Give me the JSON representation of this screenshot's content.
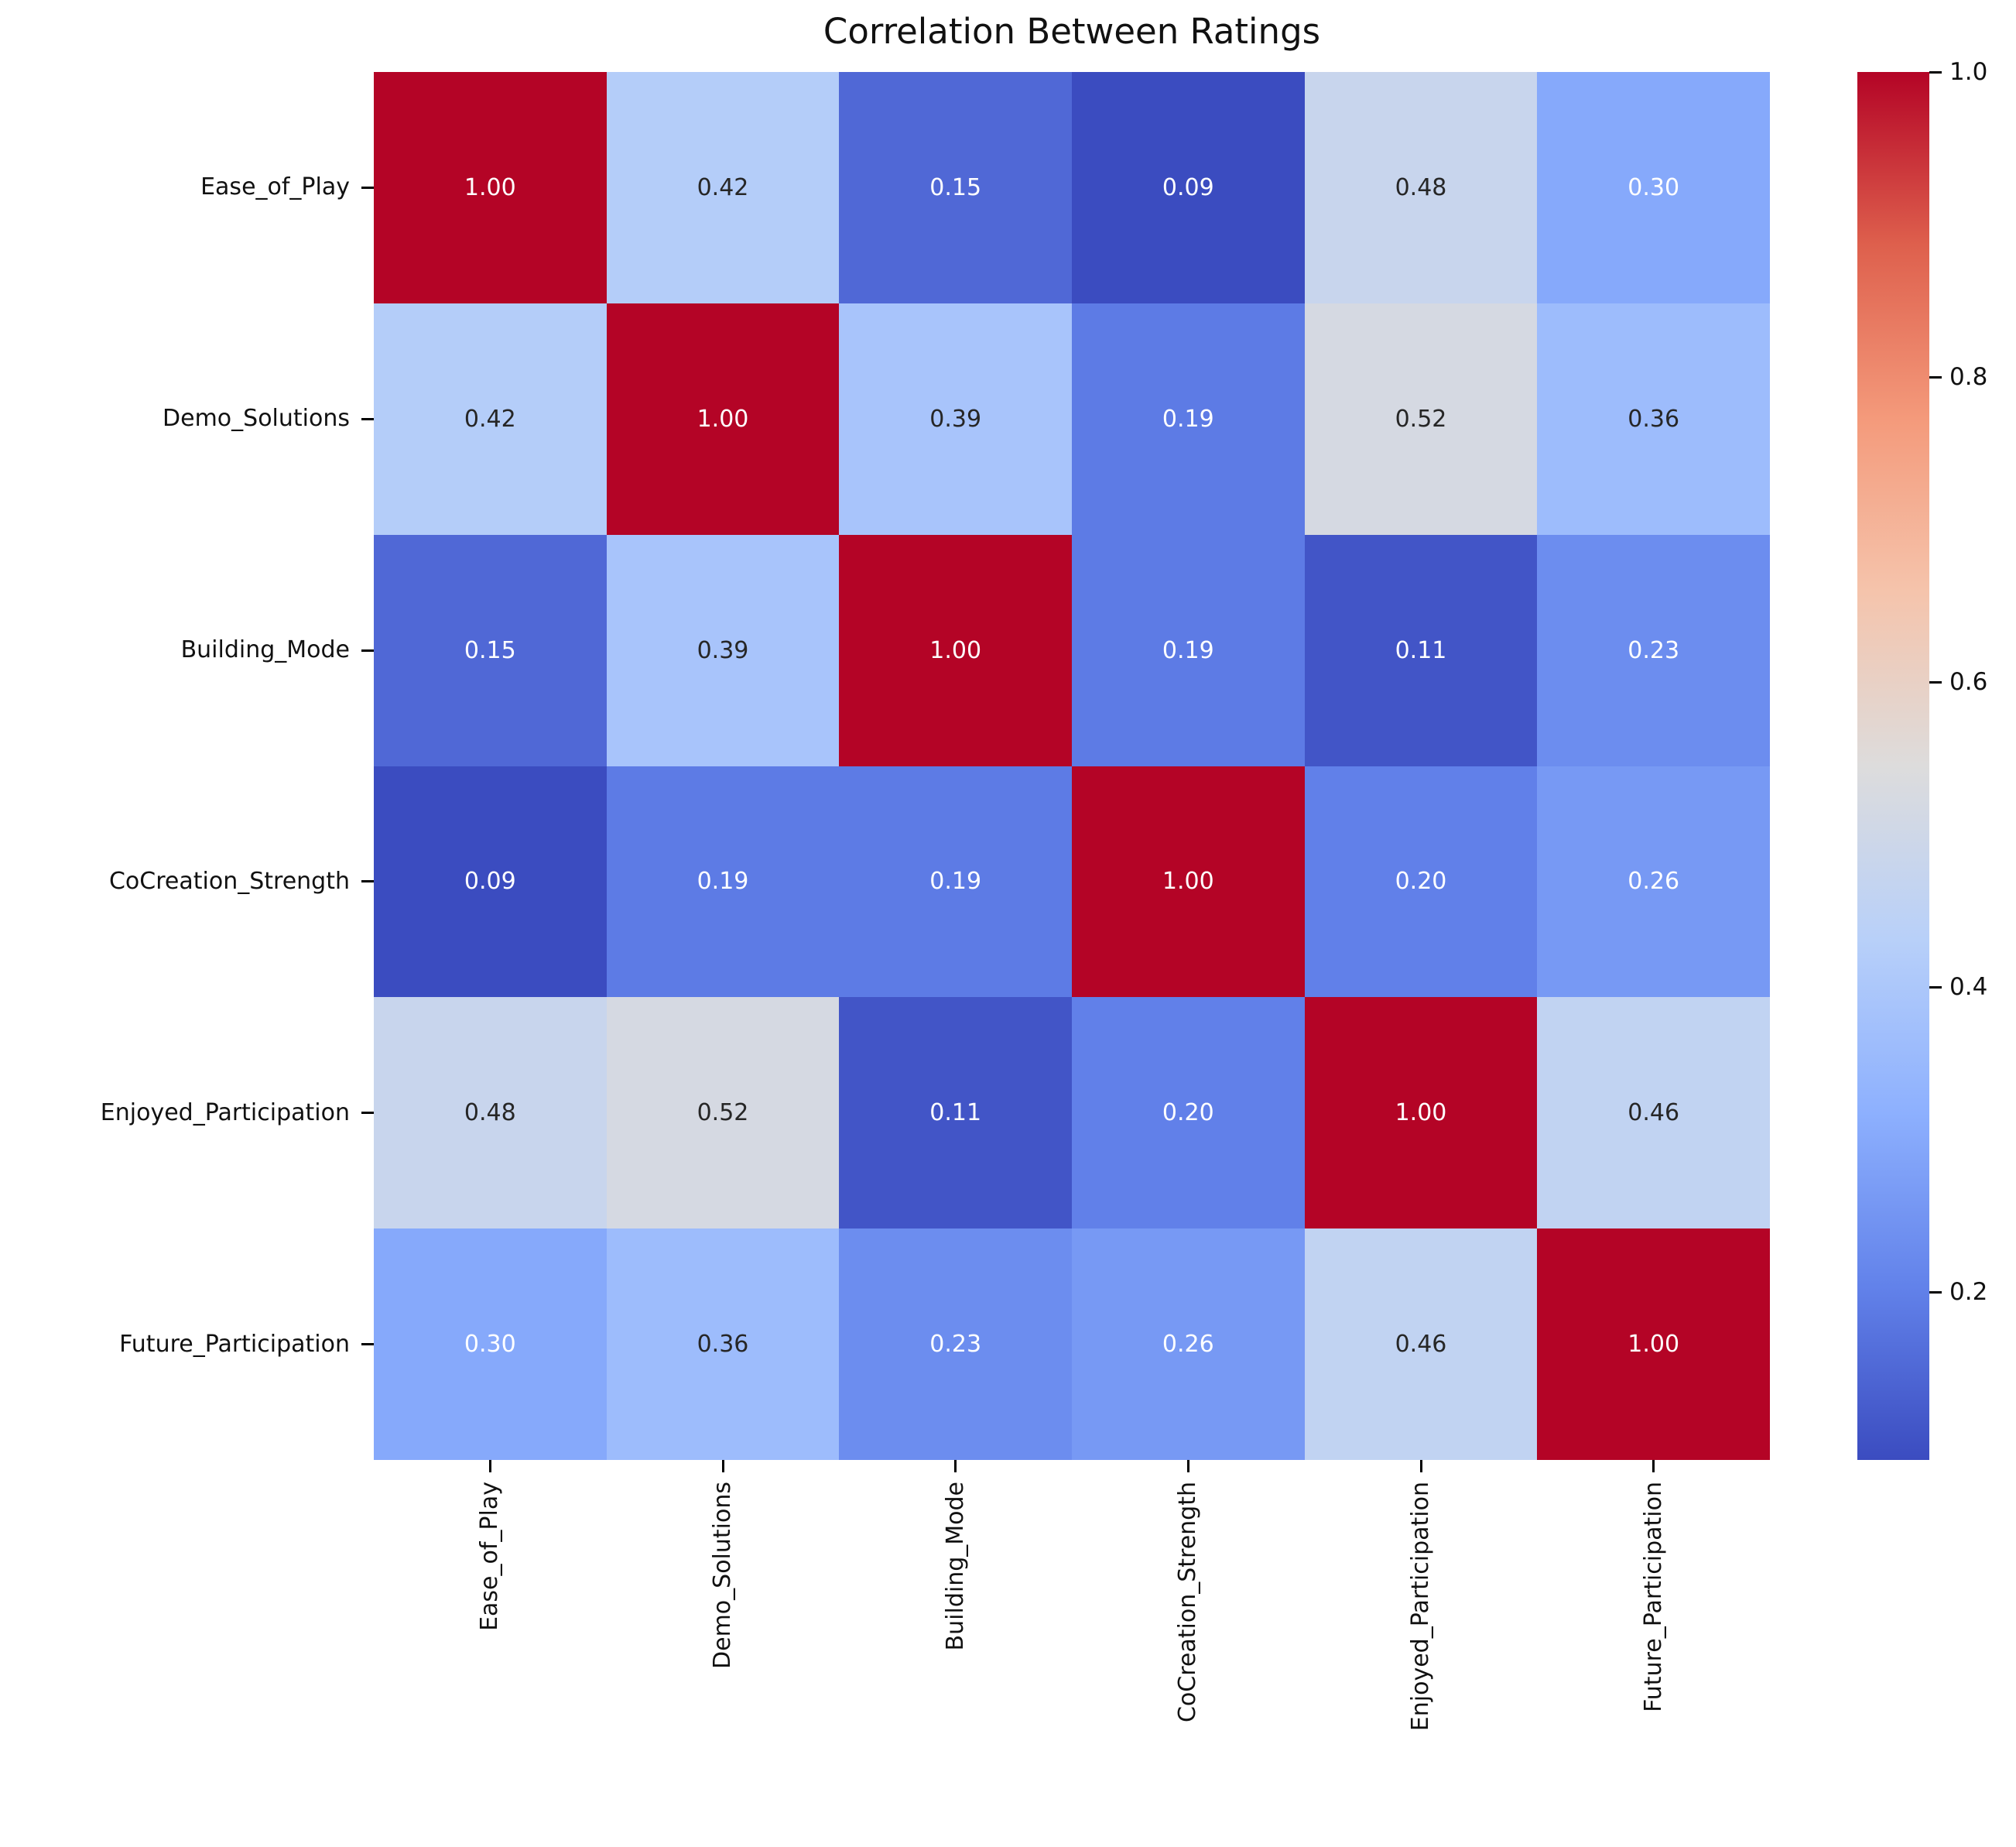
{
  "chart_data": {
    "type": "heatmap",
    "title": "Correlation Between Ratings",
    "categories": [
      "Ease_of_Play",
      "Demo_Solutions",
      "Building_Mode",
      "CoCreation_Strength",
      "Enjoyed_Participation",
      "Future_Participation"
    ],
    "matrix": [
      [
        1.0,
        0.42,
        0.15,
        0.09,
        0.48,
        0.3
      ],
      [
        0.42,
        1.0,
        0.39,
        0.19,
        0.52,
        0.36
      ],
      [
        0.15,
        0.39,
        1.0,
        0.19,
        0.11,
        0.23
      ],
      [
        0.09,
        0.19,
        0.19,
        1.0,
        0.2,
        0.26
      ],
      [
        0.48,
        0.52,
        0.11,
        0.2,
        1.0,
        0.46
      ],
      [
        0.3,
        0.36,
        0.23,
        0.26,
        0.46,
        1.0
      ]
    ],
    "value_decimals": 2,
    "vmin": 0.09,
    "vmax": 1.0,
    "colormap": "coolwarm",
    "colormap_stops": [
      {
        "t": 0.0,
        "color": "#3b4cc0"
      },
      {
        "t": 0.125,
        "color": "#6282ea"
      },
      {
        "t": 0.25,
        "color": "#8db0fe"
      },
      {
        "t": 0.375,
        "color": "#b8d0f9"
      },
      {
        "t": 0.5,
        "color": "#dddcdc"
      },
      {
        "t": 0.625,
        "color": "#f5c4ac"
      },
      {
        "t": 0.75,
        "color": "#f49a7b"
      },
      {
        "t": 0.875,
        "color": "#de604d"
      },
      {
        "t": 1.0,
        "color": "#b40426"
      }
    ],
    "annotation_text_colors": {
      "light": "#ffffff",
      "dark": "#262626"
    },
    "colorbar_ticks": [
      {
        "value": 1.0,
        "label": "1.0"
      },
      {
        "value": 0.8,
        "label": "0.8"
      },
      {
        "value": 0.6,
        "label": "0.6"
      },
      {
        "value": 0.4,
        "label": "0.4"
      },
      {
        "value": 0.2,
        "label": "0.2"
      }
    ],
    "legend_position": "right",
    "grid": false
  }
}
